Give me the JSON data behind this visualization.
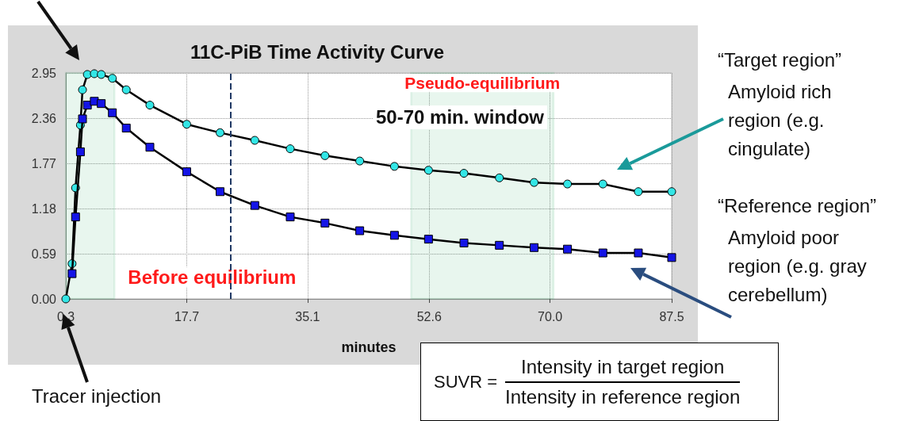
{
  "chart_data": {
    "type": "line",
    "title": "11C-PiB Time Activity Curve",
    "xlabel": "minutes",
    "x": [
      0.3,
      1.2,
      1.7,
      2.4,
      2.7,
      3.4,
      4.4,
      5.4,
      7.0,
      9.0,
      12.4,
      17.7,
      22.5,
      27.5,
      32.6,
      37.6,
      42.6,
      47.6,
      52.5,
      57.6,
      62.7,
      67.7,
      72.5,
      77.6,
      82.7,
      87.5
    ],
    "series": [
      {
        "color": "#33e6e6",
        "marker": "circle",
        "values": [
          0.0,
          0.46,
          1.45,
          2.27,
          2.73,
          2.93,
          2.94,
          2.93,
          2.88,
          2.73,
          2.53,
          2.28,
          2.17,
          2.07,
          1.96,
          1.87,
          1.8,
          1.73,
          1.68,
          1.64,
          1.58,
          1.52,
          1.5,
          1.5,
          1.4,
          1.4
        ]
      },
      {
        "color": "#1414e6",
        "marker": "square",
        "values": [
          null,
          0.33,
          1.07,
          1.92,
          2.35,
          2.53,
          2.58,
          2.55,
          2.43,
          2.23,
          1.98,
          1.66,
          1.4,
          1.22,
          1.07,
          0.99,
          0.89,
          0.83,
          0.78,
          0.73,
          0.7,
          0.67,
          0.65,
          0.6,
          0.6,
          0.54
        ]
      }
    ],
    "xlim": [
      0.3,
      87.5
    ],
    "xticks": [
      0.3,
      17.7,
      35.1,
      52.6,
      {
        "value": 70,
        "label": "70.0"
      },
      87.5
    ],
    "ylim": [
      0,
      2.95
    ],
    "yticks": [
      {
        "value": 0,
        "label": "0.00"
      },
      0.59,
      1.18,
      1.77,
      2.36,
      2.95
    ],
    "grid": true,
    "line_style": "solid",
    "ref_lines": [
      {
        "axis": "x",
        "value": 24,
        "color": "#1f3864",
        "line_style": "dashed"
      }
    ],
    "bands": [
      {
        "axis": "x",
        "from": 0.3,
        "to": 7.3,
        "label": "Before equilibrium",
        "color": "#22aa55"
      },
      {
        "axis": "x",
        "from": 50,
        "to": 70.5,
        "label": "Pseudo-equilibrium",
        "color": "#22aa55"
      }
    ],
    "annotations": [
      "50-70 min. window",
      "“Target region”",
      "Amyloid rich region (e.g. cingulate)",
      "“Reference region”",
      "Amyloid poor region (e.g. gray cerebellum)",
      "Tracer injection",
      "SUVR =",
      "Intensity in target region",
      "Intensity in reference region"
    ]
  }
}
